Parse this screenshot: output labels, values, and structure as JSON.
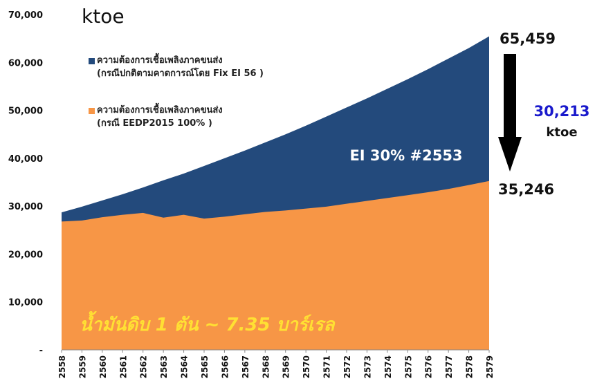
{
  "chart_data": {
    "type": "area",
    "y_unit": "ktoe",
    "categories": [
      "2558",
      "2559",
      "2560",
      "2561",
      "2562",
      "2563",
      "2564",
      "2565",
      "2566",
      "2567",
      "2568",
      "2569",
      "2570",
      "2571",
      "2572",
      "2573",
      "2574",
      "2575",
      "2576",
      "2577",
      "2578",
      "2579"
    ],
    "series": [
      {
        "name": "ความต้องการเชื้อเพลิงภาคขนส่ง\n(กรณีปกติตามคาดการณ์โดย Fix EI 56 )",
        "color": "#234a7c",
        "values": [
          28700,
          29900,
          31200,
          32500,
          33900,
          35400,
          36800,
          38400,
          40000,
          41600,
          43300,
          45000,
          46800,
          48700,
          50600,
          52500,
          54500,
          56500,
          58600,
          60800,
          63000,
          65459
        ]
      },
      {
        "name": "ความต้องการเชื้อเพลิงภาคขนส่ง\n(กรณี EEDP2015 100% )",
        "color": "#f79646",
        "values": [
          26800,
          27000,
          27700,
          28200,
          28600,
          27600,
          28200,
          27400,
          27800,
          28300,
          28800,
          29100,
          29500,
          29900,
          30500,
          31100,
          31700,
          32300,
          32900,
          33600,
          34400,
          35246
        ]
      }
    ],
    "ylim": [
      0,
      70000
    ],
    "yticks": [
      {
        "value": 0,
        "label": "-"
      },
      {
        "value": 10000,
        "label": "10,000"
      },
      {
        "value": 20000,
        "label": "20,000"
      },
      {
        "value": 30000,
        "label": "30,000"
      },
      {
        "value": 40000,
        "label": "40,000"
      },
      {
        "value": 50000,
        "label": "50,000"
      },
      {
        "value": 60000,
        "label": "60,000"
      },
      {
        "value": 70000,
        "label": "70,000"
      }
    ],
    "annotations": [
      "65,459",
      "35,246",
      "30,213",
      "ktoe",
      "EI 30% #2553",
      "น้ำมันดิบ 1 ตัน ~ 7.35 บาร์เรล"
    ]
  }
}
